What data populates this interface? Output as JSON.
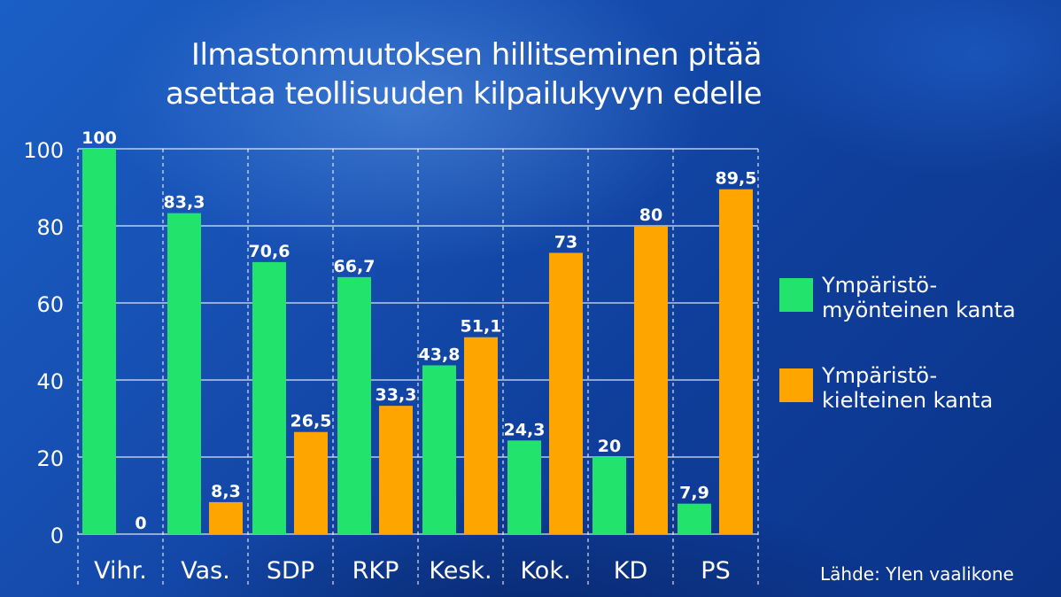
{
  "title": "Ilmastonmuutoksen hillitseminen pitää\nasettaa teollisuuden kilpailukyvyn edelle",
  "source": "Lähde: Ylen vaalikone",
  "colors": {
    "positive": "#22e36b",
    "negative": "#ffa500",
    "text": "#ffffff"
  },
  "legend": [
    {
      "label": "Ympäristö-\nmyönteinen kanta",
      "color": "#22e36b"
    },
    {
      "label": "Ympäristö-\nkielteinen kanta",
      "color": "#ffa500"
    }
  ],
  "chart_data": {
    "type": "bar",
    "title": "Ilmastonmuutoksen hillitseminen pitää asettaa teollisuuden kilpailukyvyn edelle",
    "categories": [
      "Vihr.",
      "Vas.",
      "SDP",
      "RKP",
      "Kesk.",
      "Kok.",
      "KD",
      "PS"
    ],
    "series": [
      {
        "name": "Ympäristö-myönteinen kanta",
        "color": "#22e36b",
        "values": [
          100,
          83.3,
          70.6,
          66.7,
          43.8,
          24.3,
          20,
          7.9
        ],
        "labels": [
          "100",
          "83,3",
          "70,6",
          "66,7",
          "43,8",
          "24,3",
          "20",
          "7,9"
        ]
      },
      {
        "name": "Ympäristö-kielteinen kanta",
        "color": "#ffa500",
        "values": [
          0,
          8.3,
          26.5,
          33.3,
          51.1,
          73,
          80,
          89.5
        ],
        "labels": [
          "0",
          "8,3",
          "26,5",
          "33,3",
          "51,1",
          "73",
          "80",
          "89,5"
        ]
      }
    ],
    "yticks": [
      "0",
      "20",
      "40",
      "60",
      "80",
      "100"
    ],
    "ylim": [
      0,
      100
    ],
    "grid": true,
    "legend_position": "right"
  }
}
